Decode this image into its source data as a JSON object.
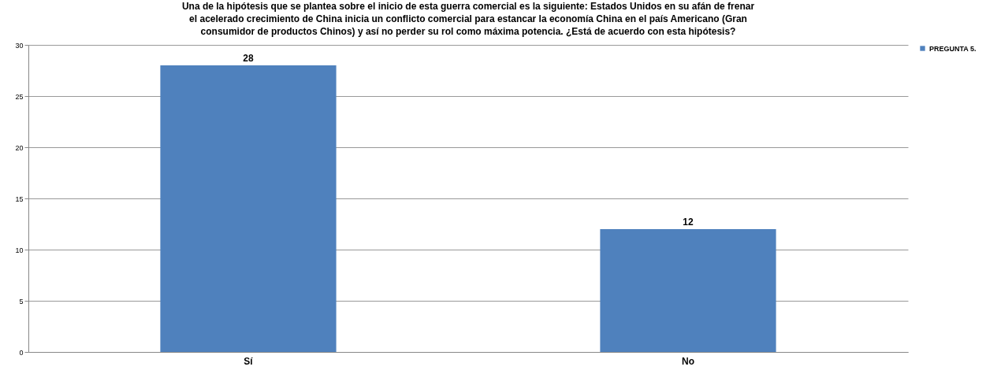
{
  "chart_data": {
    "type": "bar",
    "title": "Una de la hipótesis que se plantea sobre el inicio de esta guerra comercial es la siguiente: Estados Unidos en su afán de frenar el acelerado crecimiento de China inicia un conflicto comercial para estancar la economía China en el país Americano (Gran consumidor de productos Chinos) y así no perder su rol como máxima potencia. ¿Está de acuerdo con esta hipótesis?",
    "categories": [
      "Sí",
      "No"
    ],
    "series": [
      {
        "name": "PREGUNTA 5.",
        "color": "#4f81bd",
        "values": [
          28,
          12
        ]
      }
    ],
    "ylim": [
      0,
      30
    ],
    "yticks": [
      0,
      5,
      10,
      15,
      20,
      25,
      30
    ],
    "grid": "y",
    "legend": "right",
    "data_labels": true
  }
}
